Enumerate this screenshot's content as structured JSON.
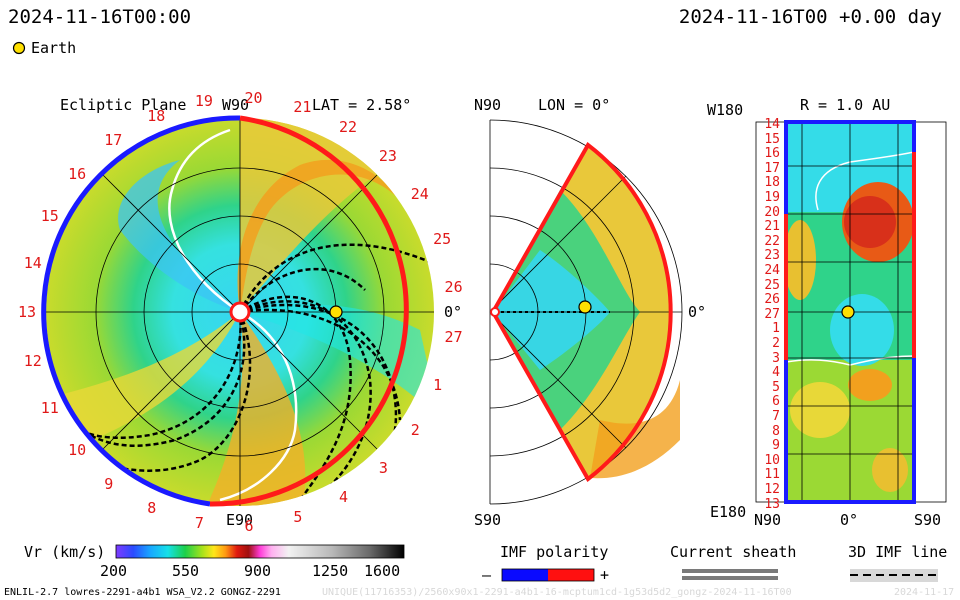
{
  "header": {
    "left_time": "2024-11-16T00:00",
    "right_time": "2024-11-16T00 +0.00 day",
    "legend_earth": "Earth"
  },
  "ecliptic": {
    "title": "Ecliptic Plane",
    "top_label": "W90",
    "lat_label": "LAT = 2.58°",
    "right_label": "0°",
    "bottom_label": "E90",
    "carrington_ticks": [
      "19",
      "20",
      "21",
      "22",
      "23",
      "24",
      "25",
      "26",
      "27",
      "1",
      "2",
      "3",
      "4",
      "5",
      "6",
      "7",
      "8",
      "9",
      "10",
      "11",
      "12",
      "13",
      "14",
      "15",
      "16",
      "17",
      "18"
    ]
  },
  "meridional": {
    "top_left": "N90",
    "title": "LON = 0°",
    "right_label": "0°",
    "bottom_left": "S90"
  },
  "radial": {
    "title": "R = 1.0 AU",
    "top_left": "W180",
    "bottom_left": "E180",
    "x_labels": [
      "N90",
      "0°",
      "S90"
    ],
    "y_ticks": [
      "14",
      "15",
      "16",
      "17",
      "18",
      "19",
      "20",
      "21",
      "22",
      "23",
      "24",
      "25",
      "26",
      "27",
      "1",
      "2",
      "3",
      "4",
      "5",
      "6",
      "7",
      "8",
      "9",
      "10",
      "11",
      "12",
      "13"
    ]
  },
  "colorbar": {
    "label": "Vr (km/s)",
    "ticks": [
      "200",
      "550",
      "900",
      "1250",
      "1600"
    ],
    "range": [
      200,
      1600
    ]
  },
  "imf_polarity": {
    "title": "IMF polarity",
    "minus": "–",
    "plus": "+",
    "neg_color": "#0a0aff",
    "pos_color": "#ff1010"
  },
  "current_sheath": {
    "title": "Current sheath"
  },
  "imf_line": {
    "title": "3D IMF line"
  },
  "footer": {
    "model": "ENLIL-2.7 lowres-2291-a4b1 WSA_V2.2 GONGZ-2291",
    "run_id": "UNIQUE(11716353)/2560x90x1-2291-a4b1-16-mcptum1cd-1g53d5d2_gongz-2024-11-16T00",
    "date_tag": "2024-11-17"
  }
}
